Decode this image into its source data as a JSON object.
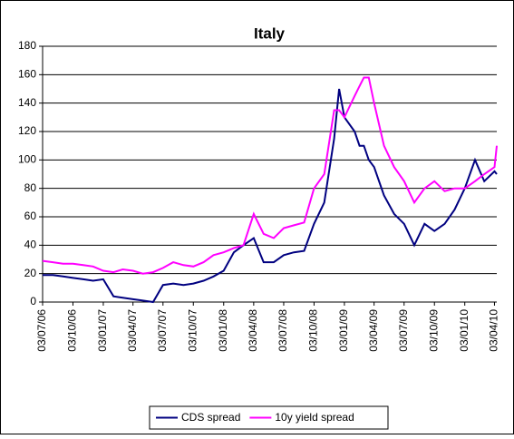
{
  "chart_data": {
    "type": "line",
    "title": "Italy",
    "x": [
      "03/07/06",
      "03/08/06",
      "03/09/06",
      "03/10/06",
      "03/11/06",
      "03/12/06",
      "03/01/07",
      "03/02/07",
      "03/03/07",
      "03/04/07",
      "03/05/07",
      "03/06/07",
      "03/07/07",
      "03/08/07",
      "03/09/07",
      "03/10/07",
      "03/11/07",
      "03/12/07",
      "03/01/08",
      "03/02/08",
      "03/03/08",
      "03/04/08",
      "03/05/08",
      "03/06/08",
      "03/07/08",
      "03/08/08",
      "03/09/08",
      "03/10/08",
      "03/11/08",
      "03/12/08",
      "18/12/08",
      "03/01/09",
      "03/02/09",
      "18/02/09",
      "03/03/09",
      "18/03/09",
      "03/04/09",
      "03/05/09",
      "03/06/09",
      "03/07/09",
      "03/08/09",
      "03/09/09",
      "03/10/09",
      "03/11/09",
      "03/12/09",
      "03/01/10",
      "03/02/10",
      "03/03/10",
      "03/04/10",
      "10/04/10"
    ],
    "series": [
      {
        "name": "CDS spread",
        "color": "#000080",
        "values": [
          19,
          19,
          18,
          17,
          16,
          15,
          16,
          4,
          3,
          2,
          1,
          0,
          12,
          13,
          12,
          13,
          15,
          18,
          22,
          35,
          40,
          45,
          28,
          28,
          33,
          35,
          36,
          55,
          70,
          115,
          150,
          130,
          120,
          110,
          110,
          100,
          95,
          75,
          62,
          55,
          40,
          55,
          50,
          55,
          65,
          80,
          100,
          85,
          92,
          90
        ]
      },
      {
        "name": "10y yield spread",
        "color": "#ff00ff",
        "values": [
          29,
          28,
          27,
          27,
          26,
          25,
          22,
          21,
          23,
          22,
          20,
          21,
          24,
          28,
          26,
          25,
          28,
          33,
          35,
          38,
          40,
          62,
          48,
          45,
          52,
          54,
          56,
          80,
          90,
          135,
          135,
          130,
          145,
          152,
          158,
          158,
          140,
          110,
          95,
          85,
          70,
          80,
          85,
          78,
          80,
          80,
          85,
          90,
          95,
          110
        ]
      }
    ],
    "xlim": [
      "03/07/06",
      "10/04/10"
    ],
    "xticks": [
      "03/07/06",
      "03/10/06",
      "03/01/07",
      "03/04/07",
      "03/07/07",
      "03/10/07",
      "03/01/08",
      "03/04/08",
      "03/07/08",
      "03/10/08",
      "03/01/09",
      "03/04/09",
      "03/07/09",
      "03/10/09",
      "03/01/10",
      "03/04/10"
    ],
    "ylim": [
      0,
      180
    ],
    "yticks": [
      0,
      20,
      40,
      60,
      80,
      100,
      120,
      140,
      160,
      180
    ],
    "grid": true
  }
}
